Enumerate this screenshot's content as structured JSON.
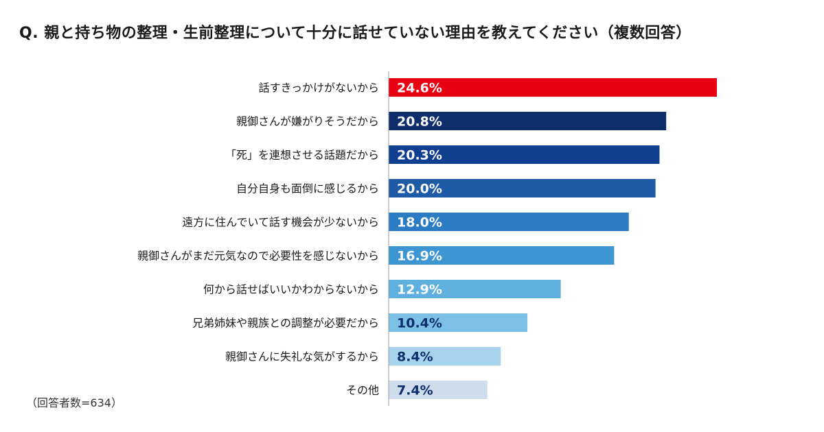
{
  "title": "Q. 親と持ち物の整理・生前整理について十分に話せていない理由を教えてください（複数回答）",
  "note": "（回答者数=634）",
  "chart_data": {
    "type": "bar",
    "orientation": "horizontal",
    "title": "Q. 親と持ち物の整理・生前整理について十分に話せていない理由を教えてください（複数回答）",
    "xlabel": "",
    "ylabel": "",
    "unit": "%",
    "grid": false,
    "legend": "none",
    "xlim": [
      0,
      30
    ],
    "categories": [
      "話すきっかけがないから",
      "親御さんが嫌がりそうだから",
      "「死」を連想させる話題だから",
      "自分自身も面倒に感じるから",
      "遠方に住んでいて話す機会が少ないから",
      "親御さんがまだ元気なので必要性を感じないから",
      "何から話せばいいかわからないから",
      "兄弟姉妹や親族との調整が必要だから",
      "親御さんに失礼な気がするから",
      "その他"
    ],
    "values": [
      24.6,
      20.8,
      20.3,
      20.0,
      18.0,
      16.9,
      12.9,
      10.4,
      8.4,
      7.4
    ],
    "labels": [
      "24.6%",
      "20.8%",
      "20.3%",
      "20.0%",
      "18.0%",
      "16.9%",
      "12.9%",
      "10.4%",
      "8.4%",
      "7.4%"
    ],
    "colors": [
      "#e60012",
      "#0d2d6b",
      "#103f8f",
      "#1f5aa6",
      "#2c7cc4",
      "#3d96d2",
      "#5fb0de",
      "#7cc0e5",
      "#a8d3ee",
      "#cfdcec"
    ],
    "label_colors": [
      "#ffffff",
      "#ffffff",
      "#ffffff",
      "#ffffff",
      "#ffffff",
      "#ffffff",
      "#ffffff",
      "#0d2d6b",
      "#0d2d6b",
      "#0d2d6b"
    ]
  }
}
